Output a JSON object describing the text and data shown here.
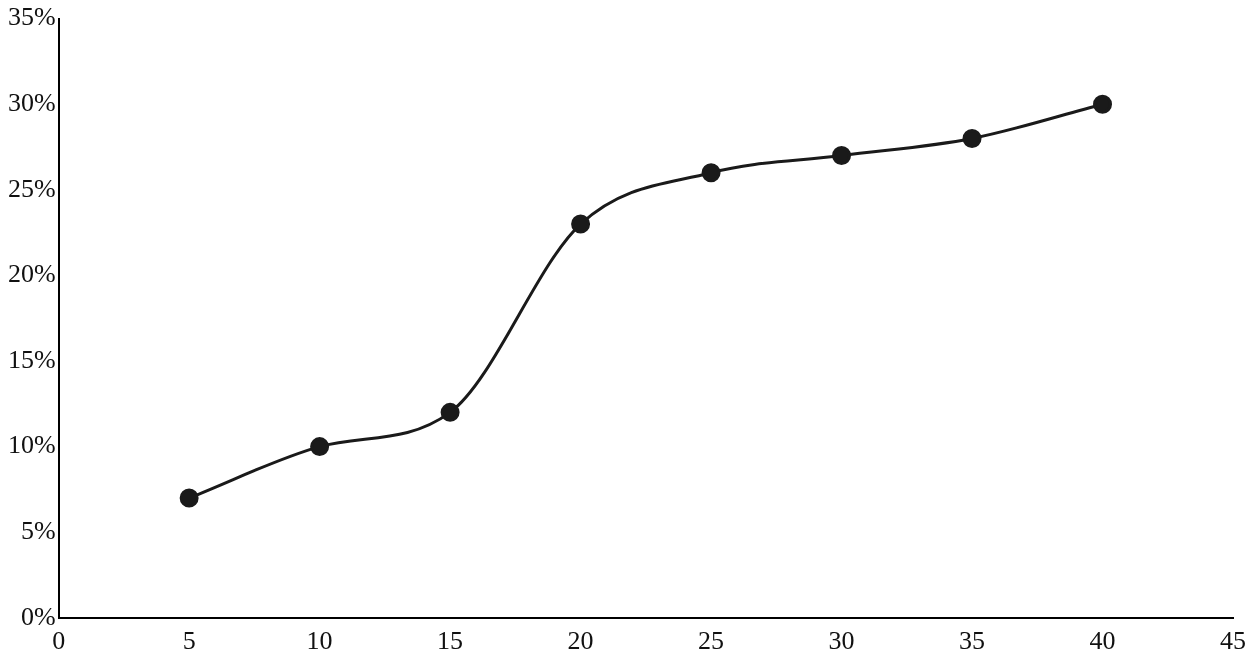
{
  "chart_data": {
    "type": "line",
    "x": [
      5,
      10,
      15,
      20,
      25,
      30,
      35,
      40
    ],
    "series": [
      {
        "color": "#1a1a1a",
        "values": [
          7,
          10,
          12,
          23,
          26,
          27,
          28,
          30
        ]
      }
    ],
    "xlim": [
      0,
      45
    ],
    "xticks": [
      0,
      5,
      10,
      15,
      20,
      25,
      30,
      35,
      40,
      45
    ],
    "ylim": [
      0,
      35
    ],
    "yticks": [
      {
        "value": 0,
        "label": "0%"
      },
      {
        "value": 5,
        "label": "5%"
      },
      {
        "value": 10,
        "label": "10%"
      },
      {
        "value": 15,
        "label": "15%"
      },
      {
        "value": 20,
        "label": "20%"
      },
      {
        "value": 25,
        "label": "25%"
      },
      {
        "value": 30,
        "label": "30%"
      },
      {
        "value": 35,
        "label": "35%"
      }
    ],
    "grid": false,
    "legend": false,
    "marker": "circle",
    "line_style": "solid"
  }
}
